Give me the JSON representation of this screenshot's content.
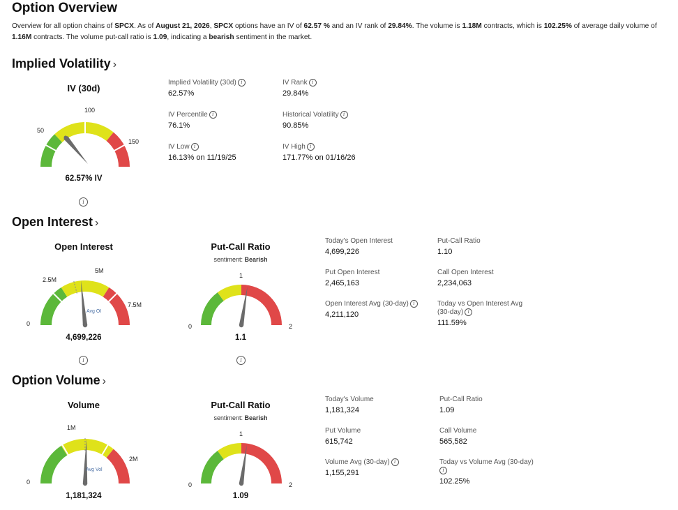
{
  "header": {
    "title": "Option Overview",
    "summary": {
      "t1": "Overview for all option chains of ",
      "ticker1": "SPCX",
      "t2": ". As of ",
      "date": "August 21, 2026",
      "t3": ", ",
      "ticker2": "SPCX",
      "t4": " options have an IV of ",
      "iv": "62.57 %",
      "t5": " and an IV rank of ",
      "ivrank": "29.84%",
      "t6": ". The volume is ",
      "volume": "1.18M",
      "t7": " contracts, which is ",
      "volpct": "102.25%",
      "t8": " of average daily volume of ",
      "avgvol": "1.16M",
      "t9": " contracts. The volume put-call ratio is ",
      "pcr": "1.09",
      "t10": ", indicating a ",
      "sentiment": "bearish",
      "t11": " sentiment in the market."
    }
  },
  "colors": {
    "green": "#5cb83a",
    "yellow": "#dfe21a",
    "red": "#e04848",
    "needle": "#6b6b6b"
  },
  "iv": {
    "section_title": "Implied Volatility",
    "gauge": {
      "title": "IV (30d)",
      "ticks": [
        "50",
        "100",
        "150"
      ],
      "value_label": "62.57% IV",
      "value_fraction": 0.313
    },
    "stats": [
      {
        "label": "Implied Volatility (30d)",
        "value": "62.57%"
      },
      {
        "label": "IV Rank",
        "value": "29.84%"
      },
      {
        "label": "IV Percentile",
        "value": "76.1%"
      },
      {
        "label": "Historical Volatility",
        "value": "90.85%"
      },
      {
        "label": "IV Low",
        "value": "16.13% on 11/19/25"
      },
      {
        "label": "IV High",
        "value": "171.77% on 01/16/26"
      }
    ]
  },
  "oi": {
    "section_title": "Open Interest",
    "gauge": {
      "title": "Open Interest",
      "ticks": [
        "0",
        "2.5M",
        "5M",
        "7.5M"
      ],
      "avg_label": "Avg OI",
      "avg_fraction": 0.42,
      "value_label": "4,699,226",
      "value_fraction": 0.47
    },
    "pcr_gauge": {
      "title": "Put-Call Ratio",
      "sentiment_label": "sentiment: ",
      "sentiment": "Bearish",
      "ticks": [
        "0",
        "1",
        "2"
      ],
      "value_label": "1.1",
      "value": 1.1
    },
    "stats": [
      {
        "label": "Today's Open Interest",
        "value": "4,699,226"
      },
      {
        "label": "Put-Call Ratio",
        "value": "1.10"
      },
      {
        "label": "Put Open Interest",
        "value": "2,465,163"
      },
      {
        "label": "Call Open Interest",
        "value": "2,234,063"
      },
      {
        "label": "Open Interest Avg (30-day)",
        "value": "4,211,120"
      },
      {
        "label": "Today vs Open Interest Avg",
        "label2": "(30-day)",
        "value": "111.59%"
      }
    ]
  },
  "vol": {
    "section_title": "Option Volume",
    "gauge": {
      "title": "Volume",
      "ticks": [
        "0",
        "1M",
        "2M"
      ],
      "avg_label": "Avg Vol",
      "avg_fraction": 0.5,
      "value_label": "1,181,324",
      "value_fraction": 0.51
    },
    "pcr_gauge": {
      "title": "Put-Call Ratio",
      "sentiment_label": "sentiment: ",
      "sentiment": "Bearish",
      "ticks": [
        "0",
        "1",
        "2"
      ],
      "value_label": "1.09",
      "value": 1.09
    },
    "stats": [
      {
        "label": "Today's Volume",
        "value": "1,181,324"
      },
      {
        "label": "Put-Call Ratio",
        "value": "1.09"
      },
      {
        "label": "Put Volume",
        "value": "615,742"
      },
      {
        "label": "Call Volume",
        "value": "565,582"
      },
      {
        "label": "Volume Avg (30-day)",
        "value": "1,155,291"
      },
      {
        "label": "Today vs Volume Avg (30-day)",
        "value": "102.25%"
      }
    ]
  }
}
